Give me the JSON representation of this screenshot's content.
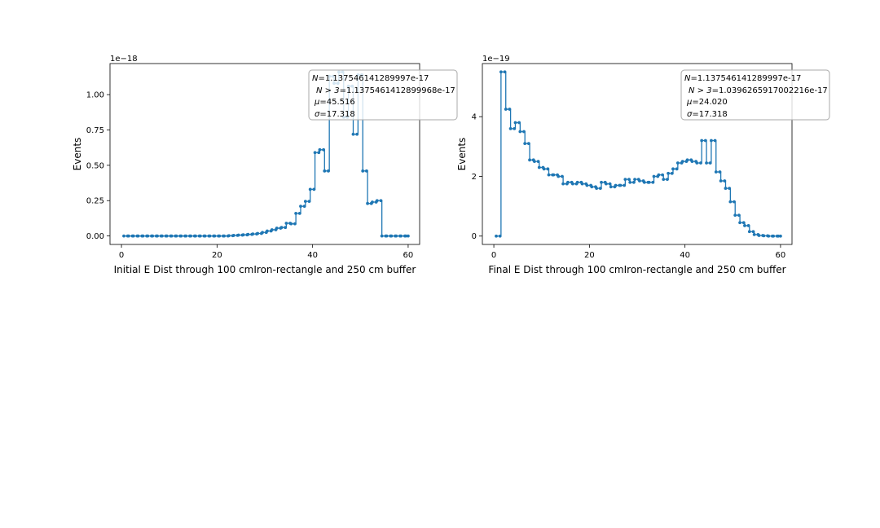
{
  "chart_data": [
    {
      "type": "line",
      "drawstyle": "steps-post",
      "xlabel": "Initial E Dist through 100 cmIron-rectangle and 250 cm buffer",
      "ylabel": "Events",
      "offset_label": "1e−18",
      "xlim": [
        -2.4,
        62.4
      ],
      "ylim": [
        -0.06,
        1.22
      ],
      "xticks": [
        0,
        20,
        40,
        60
      ],
      "xtick_labels": [
        "0",
        "20",
        "40",
        "60"
      ],
      "yticks": [
        0.0,
        0.25,
        0.5,
        0.75,
        1.0
      ],
      "ytick_labels": [
        "0.00",
        "0.25",
        "0.50",
        "0.75",
        "1.00"
      ],
      "grid": false,
      "legend_loc": "top-right",
      "stats": [
        {
          "label": "N",
          "value": "=1.137546141289997e-17"
        },
        {
          "label": "N > 3",
          "value": "=1.1375461412899968e-17"
        },
        {
          "label": "μ",
          "value": "=45.516"
        },
        {
          "label": "σ",
          "value": "=17.318"
        }
      ],
      "series": [
        {
          "name": "Initial E",
          "color": "#1f77b4",
          "x": [
            0.5,
            1.5,
            2.5,
            3.5,
            4.5,
            5.5,
            6.5,
            7.5,
            8.5,
            9.5,
            10.5,
            11.5,
            12.5,
            13.5,
            14.5,
            15.5,
            16.5,
            17.5,
            18.5,
            19.5,
            20.5,
            21.5,
            22.5,
            23.5,
            24.5,
            25.5,
            26.5,
            27.5,
            28.5,
            29.5,
            30.5,
            31.5,
            32.5,
            33.5,
            34.5,
            35.5,
            36.5,
            37.5,
            38.5,
            39.5,
            40.5,
            41.5,
            42.5,
            43.5,
            44.5,
            45.5,
            46.5,
            47.5,
            48.5,
            49.5,
            50.5,
            51.5,
            52.5,
            53.5,
            54.5,
            55.5,
            56.5,
            57.5,
            58.5,
            59.5
          ],
          "values": [
            0,
            0,
            0,
            0,
            0,
            0,
            0,
            0,
            0,
            0,
            0,
            0,
            0,
            0,
            0,
            0,
            0,
            0,
            0,
            0,
            0,
            0,
            0.002,
            0.004,
            0.006,
            0.008,
            0.011,
            0.014,
            0.018,
            0.025,
            0.035,
            0.044,
            0.055,
            0.06,
            0.09,
            0.086,
            0.16,
            0.21,
            0.245,
            0.33,
            0.59,
            0.61,
            0.46,
            1.13,
            1.08,
            1.16,
            0.84,
            1.06,
            0.72,
            1.14,
            0.46,
            0.23,
            0.24,
            0.25,
            0.0,
            0.0,
            0.0,
            0.0,
            0.0,
            0.0
          ]
        }
      ]
    },
    {
      "type": "line",
      "drawstyle": "steps-post",
      "xlabel": "Final E Dist through 100 cmIron-rectangle and 250 cm buffer",
      "ylabel": "Events",
      "offset_label": "1e−19",
      "xlim": [
        -2.4,
        62.4
      ],
      "ylim": [
        -0.28,
        5.78
      ],
      "xticks": [
        0,
        20,
        40,
        60
      ],
      "xtick_labels": [
        "0",
        "20",
        "40",
        "60"
      ],
      "yticks": [
        0,
        2,
        4
      ],
      "ytick_labels": [
        "0",
        "2",
        "4"
      ],
      "grid": false,
      "legend_loc": "top-right",
      "stats": [
        {
          "label": "N",
          "value": "=1.137546141289997e-17"
        },
        {
          "label": "N > 3",
          "value": "=1.0396265917002216e-17"
        },
        {
          "label": "μ",
          "value": "=24.020"
        },
        {
          "label": "σ",
          "value": "=17.318"
        }
      ],
      "series": [
        {
          "name": "Final E",
          "color": "#1f77b4",
          "x": [
            0.5,
            1.5,
            2.5,
            3.5,
            4.5,
            5.5,
            6.5,
            7.5,
            8.5,
            9.5,
            10.5,
            11.5,
            12.5,
            13.5,
            14.5,
            15.5,
            16.5,
            17.5,
            18.5,
            19.5,
            20.5,
            21.5,
            22.5,
            23.5,
            24.5,
            25.5,
            26.5,
            27.5,
            28.5,
            29.5,
            30.5,
            31.5,
            32.5,
            33.5,
            34.5,
            35.5,
            36.5,
            37.5,
            38.5,
            39.5,
            40.5,
            41.5,
            42.5,
            43.5,
            44.5,
            45.5,
            46.5,
            47.5,
            48.5,
            49.5,
            50.5,
            51.5,
            52.5,
            53.5,
            54.5,
            55.5,
            56.5,
            57.5,
            58.5,
            59.5
          ],
          "values": [
            0,
            5.5,
            4.25,
            3.6,
            3.8,
            3.5,
            3.1,
            2.55,
            2.5,
            2.3,
            2.25,
            2.05,
            2.05,
            2.0,
            1.75,
            1.8,
            1.75,
            1.8,
            1.75,
            1.7,
            1.65,
            1.6,
            1.8,
            1.75,
            1.65,
            1.7,
            1.7,
            1.9,
            1.8,
            1.9,
            1.85,
            1.8,
            1.8,
            2.0,
            2.05,
            1.9,
            2.1,
            2.25,
            2.45,
            2.5,
            2.55,
            2.5,
            2.45,
            3.2,
            2.45,
            3.2,
            2.15,
            1.85,
            1.6,
            1.15,
            0.7,
            0.45,
            0.35,
            0.15,
            0.05,
            0.02,
            0.01,
            0,
            0,
            0
          ]
        }
      ]
    }
  ]
}
